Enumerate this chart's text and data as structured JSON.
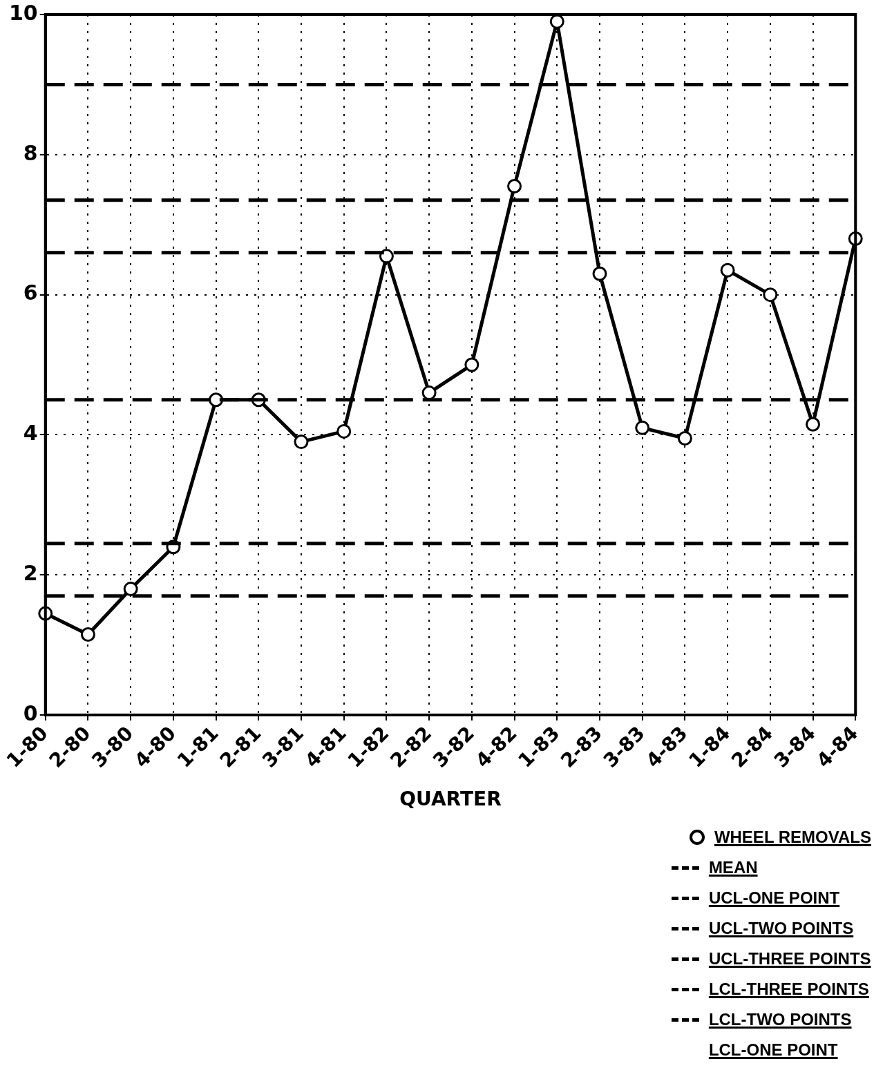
{
  "chart_data": {
    "type": "line",
    "xlabel": "QUARTER",
    "categories": [
      "1-80",
      "2-80",
      "3-80",
      "4-80",
      "1-81",
      "2-81",
      "3-81",
      "4-81",
      "1-82",
      "2-82",
      "3-82",
      "4-82",
      "1-83",
      "2-83",
      "3-83",
      "4-83",
      "1-84",
      "2-84",
      "3-84",
      "4-84"
    ],
    "series": [
      {
        "name": "WHEEL REMOVALS",
        "color": "#000000",
        "values": [
          1.45,
          1.15,
          1.8,
          2.4,
          4.5,
          4.5,
          3.9,
          4.05,
          6.55,
          4.6,
          5.0,
          7.55,
          9.9,
          6.3,
          4.1,
          3.95,
          6.35,
          6.0,
          4.15,
          6.8
        ]
      }
    ],
    "ylim": [
      0,
      10
    ],
    "yticks": [
      0,
      2,
      4,
      6,
      8,
      10
    ],
    "grid": true,
    "marker": "circle",
    "line_style": "solid",
    "legend": "bottom right",
    "ref_lines": [
      {
        "axis": "y",
        "value": 4.5,
        "label": "MEAN",
        "line_style": "dashed",
        "color": "#000000"
      },
      {
        "axis": "y",
        "value": 9.0,
        "label": "UCL-ONE POINT",
        "line_style": "dashed",
        "color": "#000000"
      },
      {
        "axis": "y",
        "value": 7.35,
        "label": "UCL-TWO POINTS",
        "line_style": "dashed",
        "color": "#000000"
      },
      {
        "axis": "y",
        "value": 6.6,
        "label": "UCL-THREE POINTS",
        "line_style": "dashed",
        "color": "#000000"
      },
      {
        "axis": "y",
        "value": 2.45,
        "label": "LCL-THREE POINTS",
        "line_style": "dashed",
        "color": "#000000"
      },
      {
        "axis": "y",
        "value": 1.7,
        "label": "LCL-TWO POINTS",
        "line_style": "dashed",
        "color": "#000000"
      }
    ],
    "annotations": [
      "LCL-ONE POINT"
    ]
  }
}
